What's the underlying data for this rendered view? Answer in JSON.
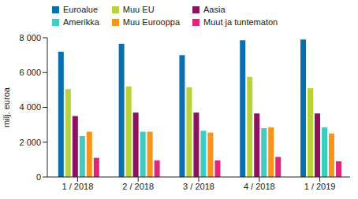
{
  "chart_data": {
    "type": "bar",
    "y_label": "milj. euroa",
    "categories": [
      "1 / 2018",
      "2 / 2018",
      "3 / 2018",
      "4 / 2018",
      "1 / 2019"
    ],
    "series": [
      {
        "name": "Euroalue",
        "color": "#0a6fae",
        "values": [
          7200,
          7650,
          7000,
          7850,
          7900
        ]
      },
      {
        "name": "Muu EU",
        "color": "#b8d23a",
        "values": [
          5050,
          5200,
          5150,
          5750,
          5100
        ]
      },
      {
        "name": "Aasia",
        "color": "#8c1260",
        "values": [
          3500,
          3700,
          3700,
          3650,
          3650
        ]
      },
      {
        "name": "Amerikka",
        "color": "#3fcbbf",
        "values": [
          2350,
          2600,
          2650,
          2800,
          2850
        ]
      },
      {
        "name": "Muu Eurooppa",
        "color": "#f7941d",
        "values": [
          2600,
          2600,
          2550,
          2850,
          2500
        ]
      },
      {
        "name": "Muut ja tuntematon",
        "color": "#e0257a",
        "values": [
          1100,
          950,
          950,
          1150,
          900
        ]
      }
    ],
    "ylim": [
      0,
      8000
    ],
    "yticks": [
      0,
      {
        "value": 2000,
        "label": "2 000"
      },
      {
        "value": 4000,
        "label": "4 000"
      },
      {
        "value": 6000,
        "label": "6 000"
      },
      {
        "value": 8000,
        "label": "8 000"
      }
    ],
    "grid": false,
    "legend": "top"
  }
}
